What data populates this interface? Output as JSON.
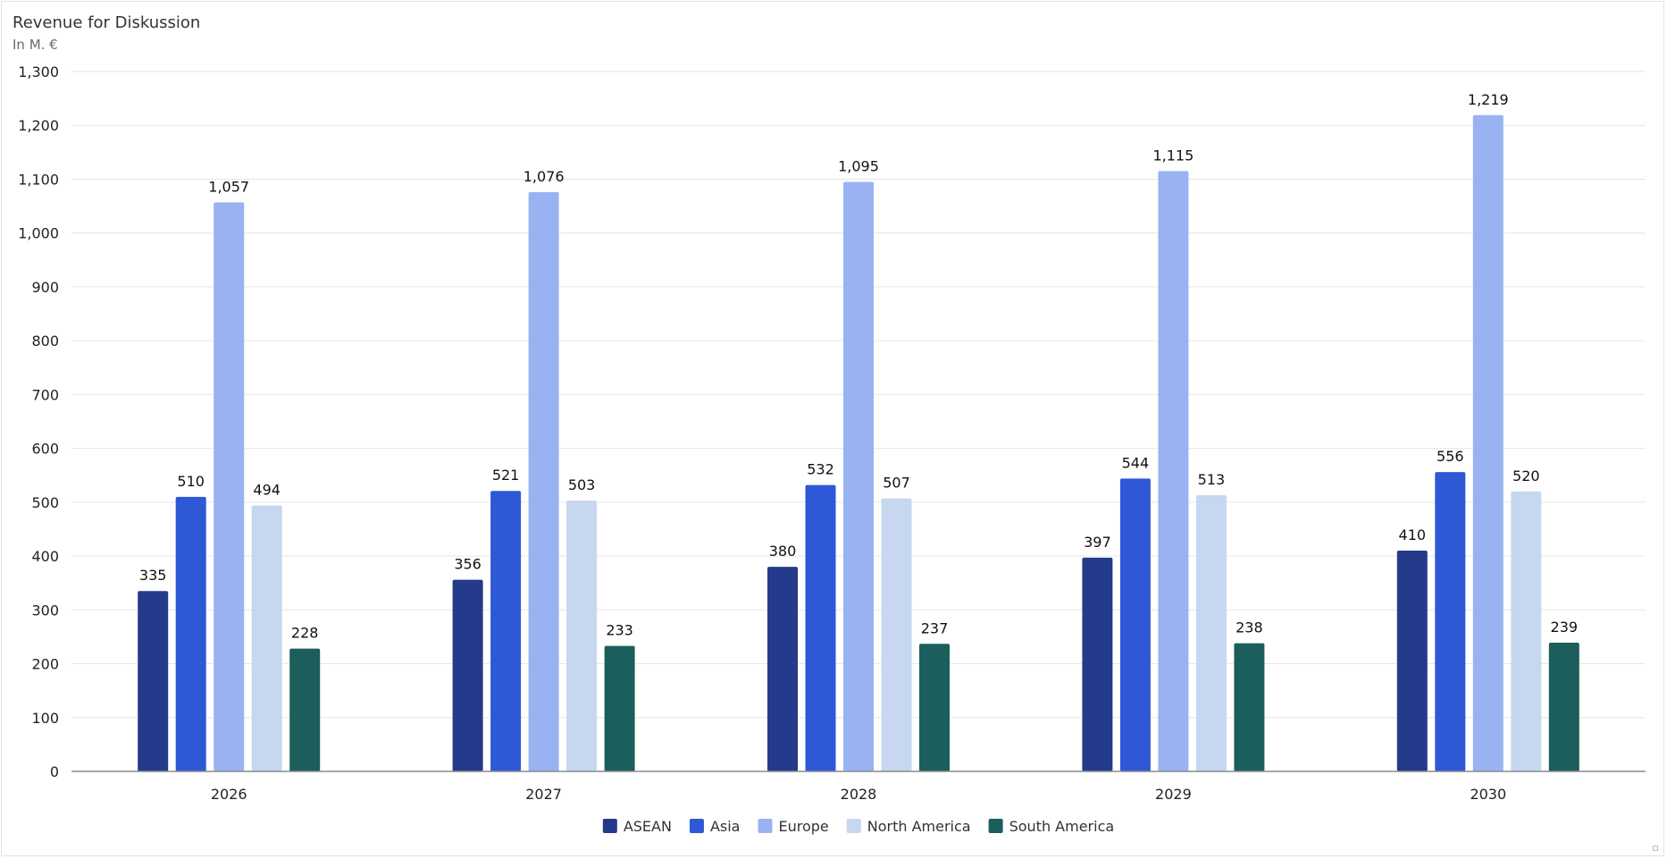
{
  "chart_data": {
    "type": "bar",
    "title": "Revenue for Diskussion",
    "subtitle": "In M. €",
    "xlabel": "",
    "ylabel": "",
    "categories": [
      "2026",
      "2027",
      "2028",
      "2029",
      "2030"
    ],
    "ylim": [
      0,
      1300
    ],
    "yticks": [
      0,
      100,
      200,
      300,
      400,
      500,
      600,
      700,
      800,
      900,
      1000,
      1100,
      1200,
      1300
    ],
    "grid": true,
    "legend_position": "bottom-center",
    "series": [
      {
        "name": "ASEAN",
        "color": "#243a8a",
        "values": [
          335,
          356,
          380,
          397,
          410
        ]
      },
      {
        "name": "Asia",
        "color": "#2f58d6",
        "values": [
          510,
          521,
          532,
          544,
          556
        ]
      },
      {
        "name": "Europe",
        "color": "#99b3f2",
        "values": [
          1057,
          1076,
          1095,
          1115,
          1219
        ]
      },
      {
        "name": "North America",
        "color": "#c6d7ef",
        "values": [
          494,
          503,
          507,
          513,
          520
        ]
      },
      {
        "name": "South America",
        "color": "#1b5e5b",
        "values": [
          228,
          233,
          237,
          238,
          239
        ]
      }
    ]
  }
}
